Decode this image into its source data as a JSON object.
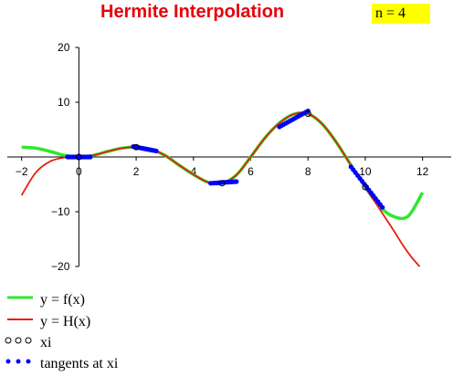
{
  "title": "Hermite Interpolation",
  "n_label": "n = 4",
  "colors": {
    "f": "#2ee82e",
    "H": "#e81e0e",
    "points": "#0000ff",
    "tangents": "#0000ff",
    "axes": "#000000"
  },
  "chart_data": {
    "type": "line",
    "title": "Hermite Interpolation",
    "xlim": [
      -2.5,
      13
    ],
    "ylim": [
      -20,
      20
    ],
    "x_ticks": [
      -2,
      0,
      2,
      4,
      6,
      8,
      10,
      12
    ],
    "y_ticks": [
      -20,
      -10,
      10,
      20
    ],
    "grid": false,
    "legend_position": "bottom-left",
    "series": [
      {
        "name": "y = f(x)",
        "x": [
          -2,
          -1.5,
          -1,
          -0.5,
          0,
          0.5,
          1,
          1.5,
          2,
          2.5,
          3,
          3.5,
          4,
          4.5,
          5,
          5.5,
          6,
          6.5,
          7,
          7.5,
          8,
          8.5,
          9,
          9.5,
          10,
          10.5,
          11,
          11.5,
          12
        ],
        "y": [
          1.8,
          1.6,
          1.0,
          0.3,
          0.0,
          0.3,
          1.0,
          1.6,
          1.8,
          1.4,
          0.3,
          -1.5,
          -3.2,
          -4.6,
          -4.8,
          -3.3,
          0.0,
          3.5,
          6.2,
          7.8,
          7.9,
          6.0,
          2.6,
          -1.5,
          -5.5,
          -9.0,
          -10.9,
          -10.8,
          -6.5
        ]
      },
      {
        "name": "y = H(x)",
        "x": [
          -2,
          -1.5,
          -1,
          -0.5,
          0,
          0.5,
          1,
          1.5,
          2,
          2.5,
          3,
          3.5,
          4,
          4.5,
          5,
          5.5,
          6,
          6.5,
          7,
          7.5,
          8,
          8.5,
          9,
          9.5,
          10,
          10.5,
          11,
          11.3,
          11.6,
          11.9
        ],
        "y": [
          -7.0,
          -2.8,
          -0.8,
          -0.1,
          0.0,
          0.3,
          1.0,
          1.6,
          1.8,
          1.4,
          0.3,
          -1.5,
          -3.2,
          -4.6,
          -4.8,
          -3.3,
          0.0,
          3.5,
          6.2,
          7.8,
          7.9,
          6.0,
          2.6,
          -1.5,
          -5.5,
          -9.5,
          -13.5,
          -16.0,
          -18.2,
          -20.0
        ]
      },
      {
        "name": "xi",
        "x": [
          0,
          2,
          5,
          8,
          10
        ],
        "y": [
          0.0,
          1.8,
          -4.8,
          7.9,
          -5.5
        ]
      },
      {
        "name": "tangents at xi",
        "segments": [
          [
            [
              -0.4,
              0.0
            ],
            [
              0.4,
              0.0
            ]
          ],
          [
            [
              1.9,
              1.9
            ],
            [
              2.7,
              1.1
            ]
          ],
          [
            [
              4.6,
              -4.8
            ],
            [
              5.5,
              -4.5
            ]
          ],
          [
            [
              7.0,
              5.5
            ],
            [
              8.0,
              8.4
            ]
          ],
          [
            [
              9.5,
              -1.8
            ],
            [
              10.6,
              -9.2
            ]
          ]
        ]
      }
    ],
    "legend": [
      "y = f(x)",
      "y = H(x)",
      "xi",
      "tangents at xi"
    ]
  }
}
